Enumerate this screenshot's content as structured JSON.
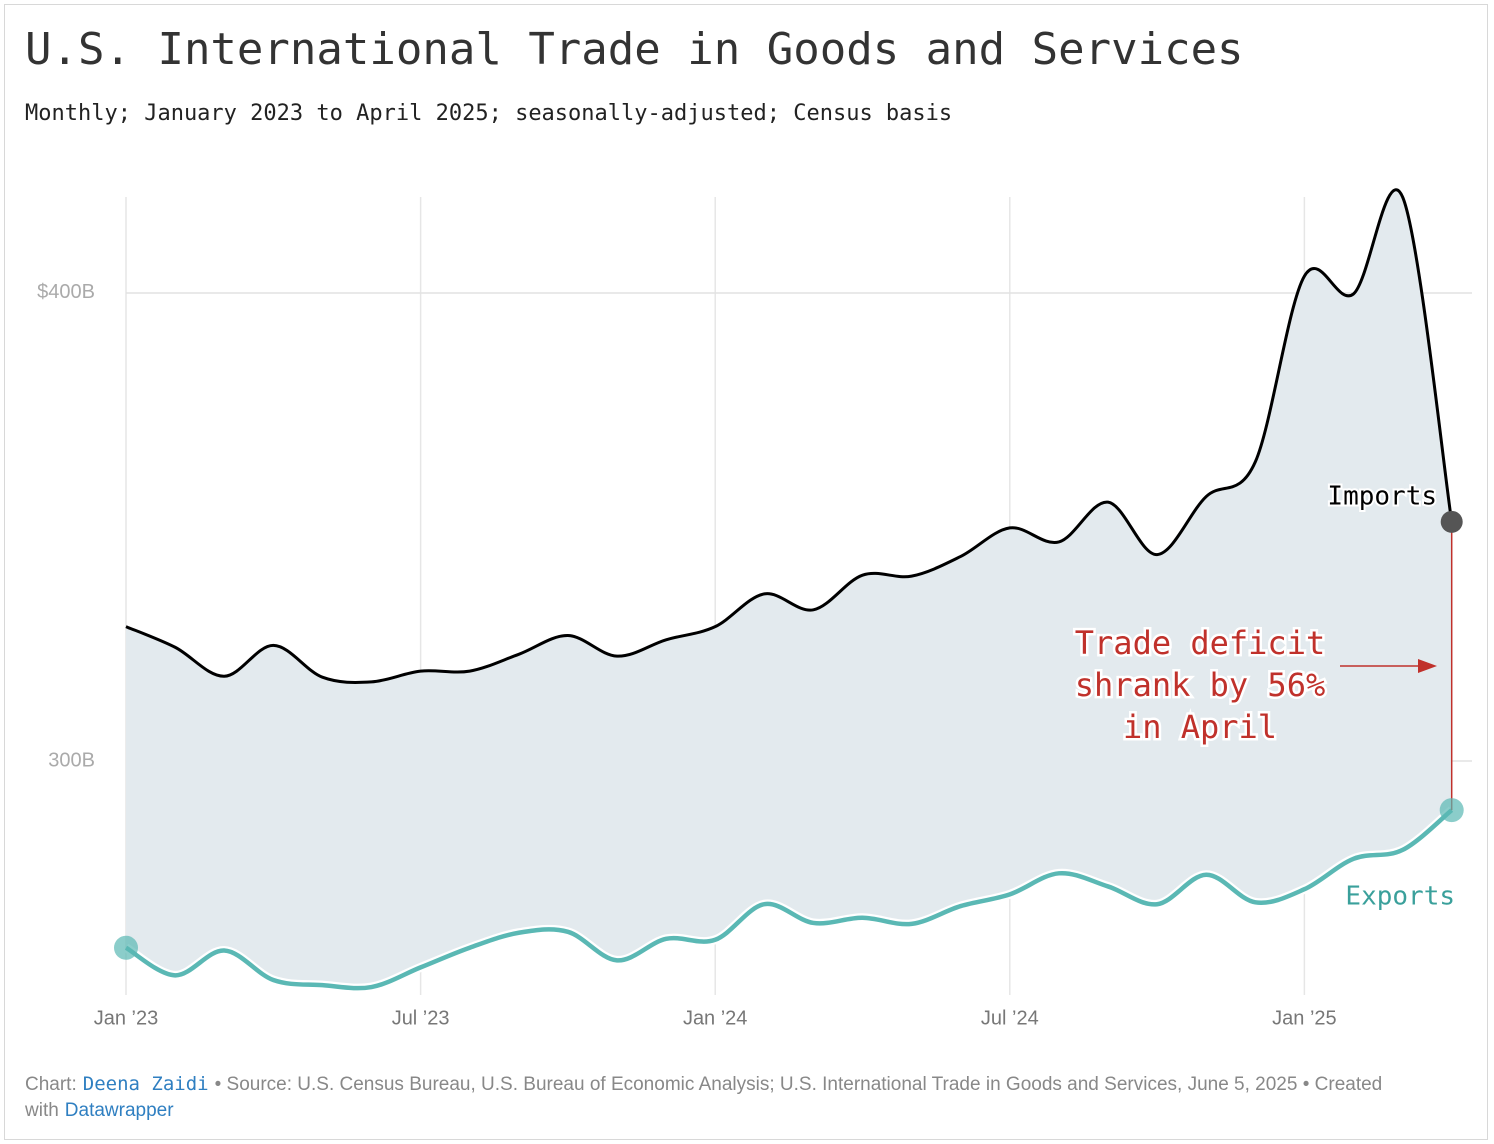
{
  "chart_data": {
    "type": "line",
    "title": "U.S. International Trade in Goods and Services",
    "subtitle": "Monthly; January 2023 to April 2025; seasonally-adjusted; Census basis",
    "x": [
      "2023-01",
      "2023-02",
      "2023-03",
      "2023-04",
      "2023-05",
      "2023-06",
      "2023-07",
      "2023-08",
      "2023-09",
      "2023-10",
      "2023-11",
      "2023-12",
      "2024-01",
      "2024-02",
      "2024-03",
      "2024-04",
      "2024-05",
      "2024-06",
      "2024-07",
      "2024-08",
      "2024-09",
      "2024-10",
      "2024-11",
      "2024-12",
      "2025-01",
      "2025-02",
      "2025-03",
      "2025-04"
    ],
    "xticks": [
      {
        "value": "2023-01",
        "label": "Jan ’23"
      },
      {
        "value": "2023-07",
        "label": "Jul ’23"
      },
      {
        "value": "2024-01",
        "label": "Jan ’24"
      },
      {
        "value": "2024-07",
        "label": "Jul ’24"
      },
      {
        "value": "2025-01",
        "label": "Jan ’25"
      }
    ],
    "ylim": [
      250,
      422
    ],
    "yticks": [
      {
        "value": 300,
        "label": "300B"
      },
      {
        "value": 400,
        "label": "$400B"
      }
    ],
    "grid": true,
    "area_color": "#e3eaee",
    "series": [
      {
        "name": "Imports",
        "color": "#000000",
        "values": [
          328.7,
          324.3,
          318.1,
          324.7,
          317.9,
          316.9,
          319.2,
          319.2,
          322.8,
          326.8,
          322.4,
          325.9,
          328.7,
          335.7,
          332.3,
          339.7,
          339.5,
          343.7,
          349.8,
          346.8,
          355.3,
          344.1,
          356.5,
          363.9,
          403.6,
          399.8,
          420.5,
          351.1
        ]
      },
      {
        "name": "Exports",
        "color": "#5ab8b4",
        "values": [
          260.1,
          254.2,
          259.5,
          253.2,
          252.1,
          251.7,
          255.9,
          260.1,
          263.3,
          263.5,
          257.4,
          262.0,
          261.8,
          269.4,
          265.4,
          266.5,
          265.2,
          269.0,
          271.5,
          276.0,
          273.2,
          269.4,
          275.7,
          269.8,
          272.6,
          279.1,
          281.0,
          289.5
        ]
      }
    ],
    "annotation": {
      "lines": [
        "Trade deficit",
        "shrank by 56%",
        "in April"
      ],
      "color": "#c0312b"
    }
  },
  "footer": {
    "chart_label": "Chart:",
    "author": "Deena Zaidi",
    "source": "• Source: U.S. Census Bureau, U.S. Bureau of Economic Analysis; U.S. International Trade in Goods and Services, June 5, 2025 • Created with",
    "tool": "Datawrapper"
  }
}
